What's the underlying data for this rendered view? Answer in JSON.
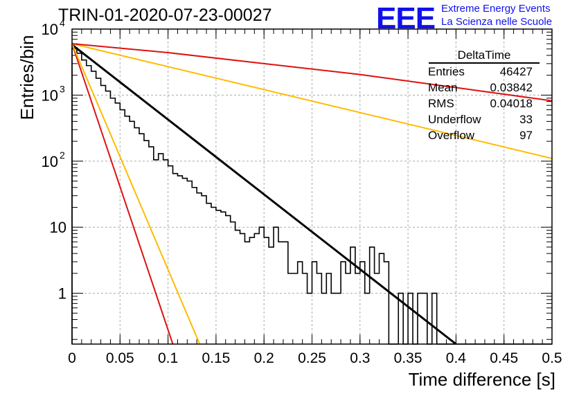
{
  "header": {
    "title": "TRIN-01-2020-07-23-00027",
    "logo": "EEE",
    "logo_line1": "Extreme Energy Events",
    "logo_line2": "La Scienza nelle Scuole"
  },
  "stats": {
    "title": "DeltaTime",
    "rows": [
      {
        "label": "Entries",
        "value": "46427"
      },
      {
        "label": "Mean",
        "value": "0.03842"
      },
      {
        "label": "RMS",
        "value": "0.04018"
      },
      {
        "label": "Underflow",
        "value": "33"
      },
      {
        "label": "Overflow",
        "value": "97"
      }
    ]
  },
  "colors": {
    "histogram": "#000000",
    "fit": "#000000",
    "red": "#dd1111",
    "yellow": "#ffbb00",
    "grid": "#aaaaaa",
    "logo": "#1010ee"
  },
  "chart_data": {
    "type": "line",
    "xlabel": "Time difference [s]",
    "ylabel": "Entries/bin",
    "xlim": [
      0,
      0.5
    ],
    "ylim": [
      0.17,
      10000
    ],
    "yscale": "log",
    "grid": true,
    "x_ticks": [
      "0",
      "0.05",
      "0.1",
      "0.15",
      "0.2",
      "0.25",
      "0.3",
      "0.35",
      "0.4",
      "0.45",
      "0.5"
    ],
    "y_ticks": [
      {
        "value": 1,
        "label": "1",
        "exp": ""
      },
      {
        "value": 10,
        "label": "10",
        "exp": ""
      },
      {
        "value": 100,
        "label": "10",
        "exp": "2"
      },
      {
        "value": 1000,
        "label": "10",
        "exp": "3"
      },
      {
        "value": 10000,
        "label": "10",
        "exp": "4"
      }
    ],
    "histogram": {
      "bin_width": 0.005,
      "x_start": 0,
      "values": [
        5200,
        4300,
        3400,
        2800,
        2300,
        1800,
        1400,
        1150,
        900,
        760,
        600,
        480,
        400,
        320,
        260,
        205,
        165,
        105,
        130,
        105,
        85,
        65,
        60,
        55,
        50,
        40,
        33,
        30,
        23,
        20,
        18,
        17,
        15,
        12,
        9,
        8,
        6,
        7,
        8,
        10,
        7,
        5,
        10,
        6,
        6,
        2,
        2,
        3,
        2,
        1,
        3,
        2,
        1,
        2,
        1,
        1,
        3,
        2,
        5,
        2,
        3,
        1,
        5,
        2,
        4,
        3,
        0,
        0,
        1,
        0,
        1,
        0,
        1,
        1,
        0,
        1,
        0,
        0,
        0,
        0,
        0,
        0,
        0,
        0,
        0,
        0,
        0,
        0,
        0,
        0,
        0,
        0,
        0,
        0,
        0,
        0,
        0,
        0,
        0,
        0
      ]
    },
    "series": [
      {
        "color": "#000000",
        "width": 3,
        "points": [
          [
            0.0,
            5800
          ],
          [
            0.4,
            0.17
          ]
        ]
      },
      {
        "color": "#dd1111",
        "width": 2,
        "points": [
          [
            0.0,
            6000
          ],
          [
            0.105,
            0.17
          ]
        ]
      },
      {
        "color": "#ffbb00",
        "width": 2,
        "points": [
          [
            0.0,
            6000
          ],
          [
            0.133,
            0.17
          ]
        ]
      },
      {
        "color": "#ffbb00",
        "width": 2,
        "points": [
          [
            0.0,
            6000
          ],
          [
            0.5,
            110
          ]
        ]
      },
      {
        "color": "#dd1111",
        "width": 2,
        "points": [
          [
            0.0,
            6000
          ],
          [
            0.1,
            4400
          ],
          [
            0.2,
            3000
          ],
          [
            0.3,
            2050
          ],
          [
            0.4,
            1300
          ],
          [
            0.5,
            820
          ]
        ]
      }
    ]
  }
}
